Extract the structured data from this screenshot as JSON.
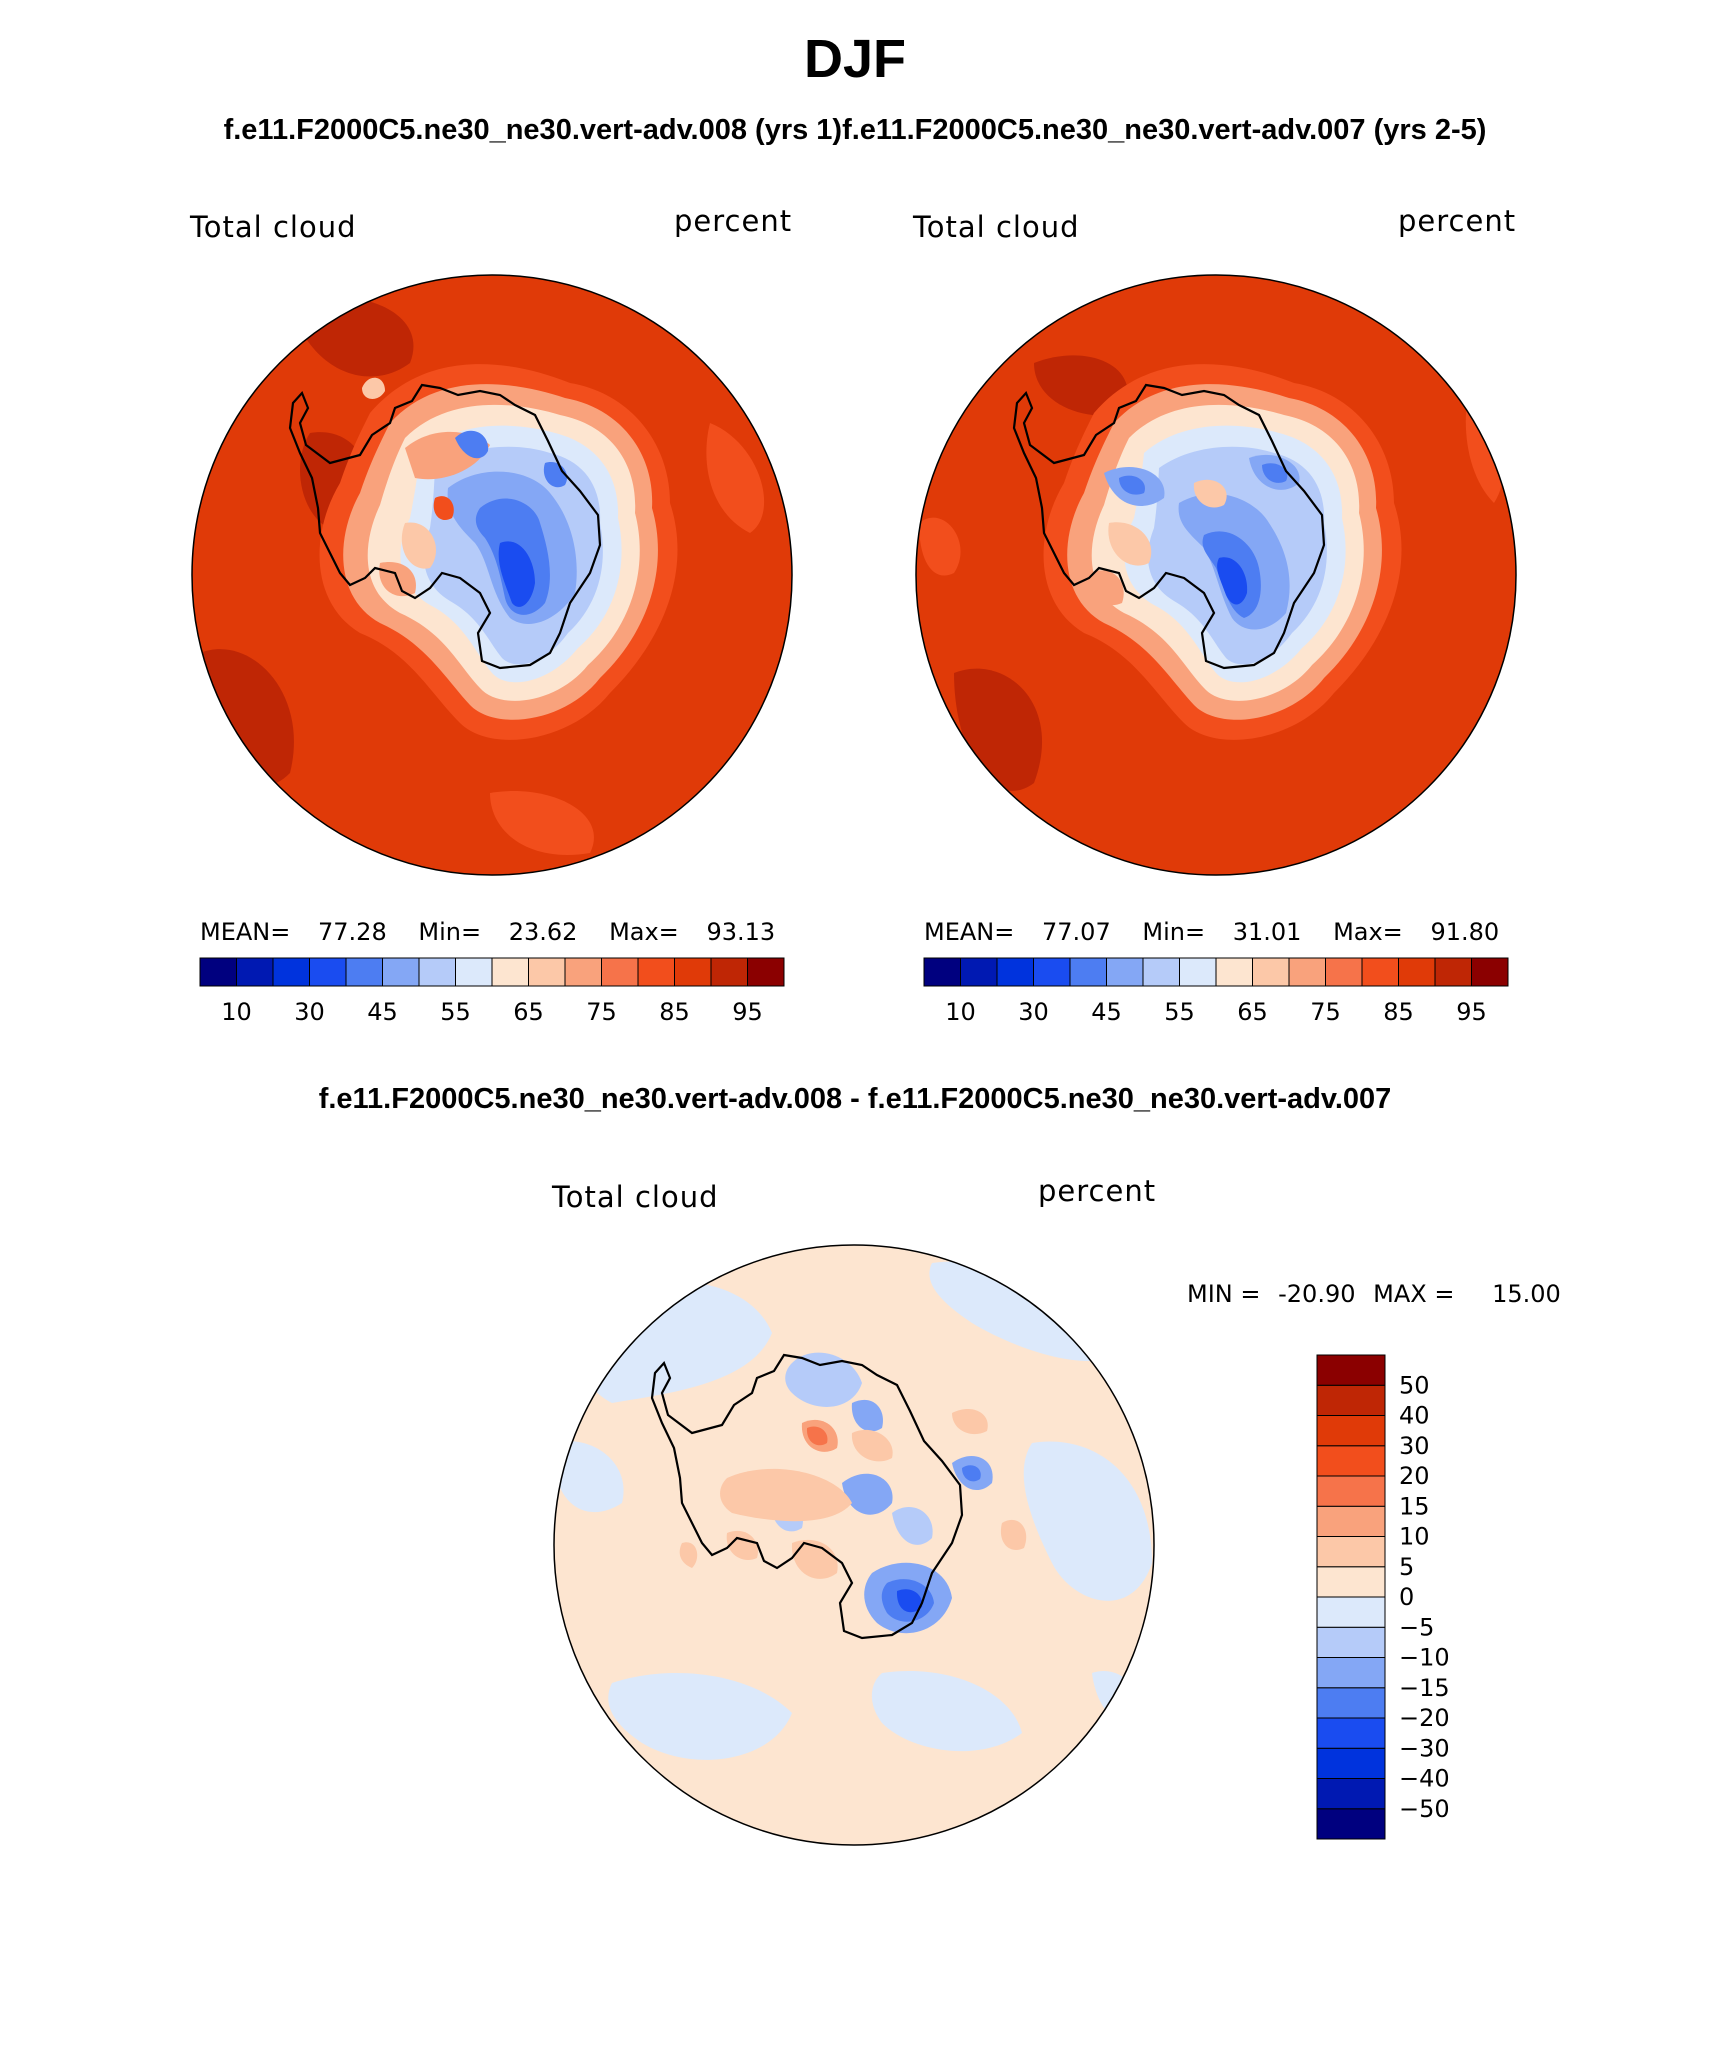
{
  "figure": {
    "title": "DJF",
    "subtitle_top": "f.e11.F2000C5.ne30_ne30.vert-adv.008 (yrs 1)f.e11.F2000C5.ne30_ne30.vert-adv.007 (yrs 2-5)",
    "subtitle_diff": "f.e11.F2000C5.ne30_ne30.vert-adv.008 - f.e11.F2000C5.ne30_ne30.vert-adv.007"
  },
  "chart_data": [
    {
      "type": "heatmap",
      "projection": "south polar stereographic",
      "variable_label": "Total cloud",
      "units_label": "percent",
      "case": "f.e11.F2000C5.ne30_ne30.vert-adv.008 (yrs 1)",
      "stats": {
        "mean_label": "MEAN=",
        "mean": "77.28",
        "min_label": "Min=",
        "min": "23.62",
        "max_label": "Max=",
        "max": "93.13"
      },
      "levels": [
        10,
        20,
        30,
        40,
        45,
        50,
        55,
        60,
        65,
        70,
        75,
        80,
        85,
        90,
        95
      ],
      "tick_labels": [
        "10",
        "30",
        "45",
        "55",
        "65",
        "75",
        "85",
        "95"
      ],
      "colors": [
        "#00007f",
        "#0019b2",
        "#0033dd",
        "#1a4cf0",
        "#4d7df2",
        "#84a7f5",
        "#b5cbf9",
        "#dce9fb",
        "#fde5d0",
        "#fcc8a8",
        "#f9a27c",
        "#f6734a",
        "#f24e1c",
        "#e03a08",
        "#bf2605",
        "#8b0000"
      ]
    },
    {
      "type": "heatmap",
      "projection": "south polar stereographic",
      "variable_label": "Total cloud",
      "units_label": "percent",
      "case": "f.e11.F2000C5.ne30_ne30.vert-adv.007 (yrs 2-5)",
      "stats": {
        "mean_label": "MEAN=",
        "mean": "77.07",
        "min_label": "Min=",
        "min": "31.01",
        "max_label": "Max=",
        "max": "91.80"
      },
      "levels": [
        10,
        20,
        30,
        40,
        45,
        50,
        55,
        60,
        65,
        70,
        75,
        80,
        85,
        90,
        95
      ],
      "tick_labels": [
        "10",
        "30",
        "45",
        "55",
        "65",
        "75",
        "85",
        "95"
      ],
      "colors": [
        "#00007f",
        "#0019b2",
        "#0033dd",
        "#1a4cf0",
        "#4d7df2",
        "#84a7f5",
        "#b5cbf9",
        "#dce9fb",
        "#fde5d0",
        "#fcc8a8",
        "#f9a27c",
        "#f6734a",
        "#f24e1c",
        "#e03a08",
        "#bf2605",
        "#8b0000"
      ]
    },
    {
      "type": "heatmap",
      "projection": "south polar stereographic",
      "variable_label": "Total cloud",
      "units_label": "percent",
      "case": "difference",
      "stats_text": {
        "min_label": "MIN =",
        "min": "-20.90",
        "max_label": "MAX =",
        "max": "15.00"
      },
      "levels": [
        -50,
        -40,
        -30,
        -20,
        -15,
        -10,
        -5,
        0,
        5,
        10,
        15,
        20,
        30,
        40,
        50
      ],
      "level_labels_top_to_bottom": [
        "50",
        "40",
        "30",
        "20",
        "15",
        "10",
        "5",
        "0",
        "-5",
        "-10",
        "-15",
        "-20",
        "-30",
        "-40",
        "-50"
      ],
      "colors_bottom_to_top": [
        "#00007f",
        "#0019b2",
        "#0033dd",
        "#1a4cf0",
        "#4d7df2",
        "#84a7f5",
        "#b5cbf9",
        "#dce9fb",
        "#fde5d0",
        "#fcc8a8",
        "#f9a27c",
        "#f6734a",
        "#f24e1c",
        "#e03a08",
        "#bf2605",
        "#8b0000"
      ]
    }
  ]
}
